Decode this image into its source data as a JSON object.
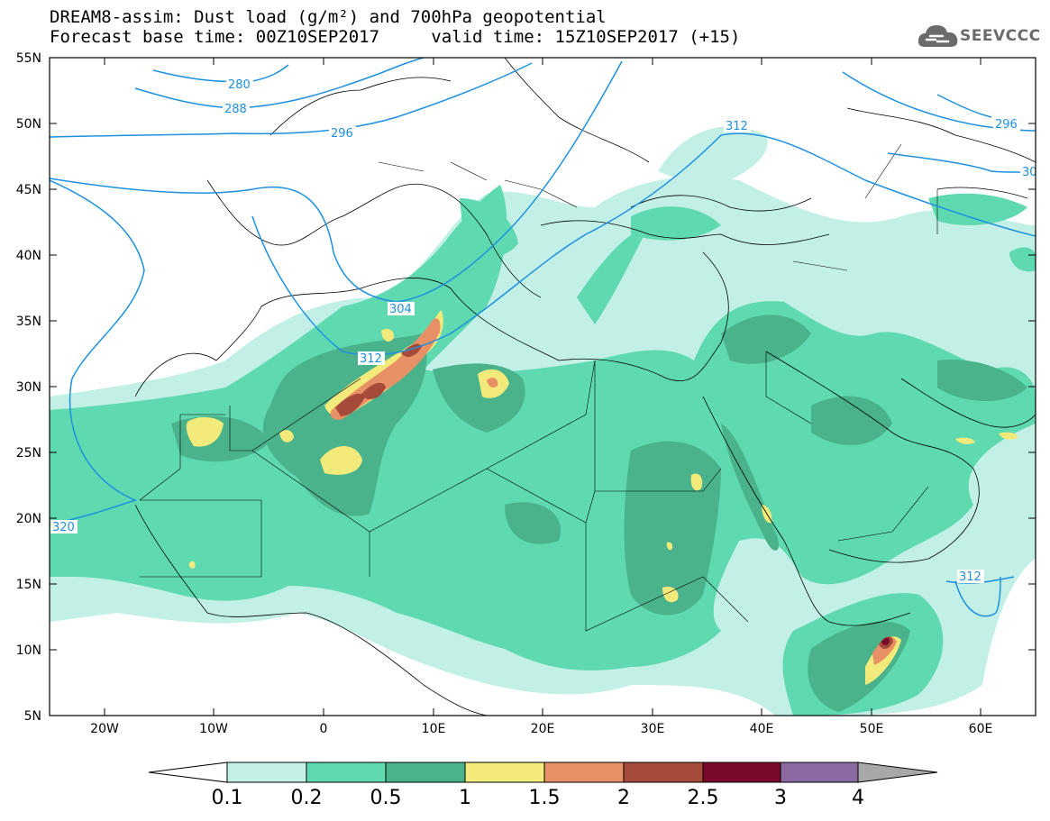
{
  "header": {
    "line1": "DREAM8-assim: Dust load (g/m²) and 700hPa geopotential",
    "line2_base": "Forecast base time: 00Z10SEP2017",
    "line2_valid": "valid time: 15Z10SEP2017 (+15)"
  },
  "logo": {
    "text": "SEEVCCC",
    "icon": "cloud-icon"
  },
  "map": {
    "lat_ticks": [
      "55N",
      "50N",
      "45N",
      "40N",
      "35N",
      "30N",
      "25N",
      "20N",
      "15N",
      "10N",
      "5N"
    ],
    "lon_ticks": [
      "20W",
      "10W",
      "0",
      "10E",
      "20E",
      "30E",
      "40E",
      "50E",
      "60E"
    ],
    "contour_labels": [
      "280",
      "288",
      "296",
      "304",
      "312",
      "320",
      "312",
      "312",
      "296",
      "30"
    ],
    "contour_color": "#1e90e0"
  },
  "colorbar": {
    "labels": [
      "0.1",
      "0.2",
      "0.5",
      "1",
      "1.5",
      "2",
      "2.5",
      "3",
      "4"
    ],
    "colors": [
      "#c2f0e6",
      "#5fd9b0",
      "#4ab38c",
      "#f2ea7a",
      "#e89066",
      "#a64b3a",
      "#7a0a2a",
      "#8a6aa0",
      "#a8a8a8"
    ]
  },
  "chart_data": {
    "type": "heatmap",
    "title": "DREAM8-assim: Dust load (g/m²) and 700hPa geopotential",
    "lon_range": [
      -25,
      65
    ],
    "lat_range": [
      5,
      55
    ],
    "field": "dust load",
    "unit": "g/m²",
    "contour_field": "700hPa geopotential",
    "levels": [
      0.1,
      0.2,
      0.5,
      1,
      1.5,
      2,
      2.5,
      3,
      4
    ],
    "geopotential_levels": [
      280,
      288,
      296,
      304,
      312,
      320
    ]
  }
}
